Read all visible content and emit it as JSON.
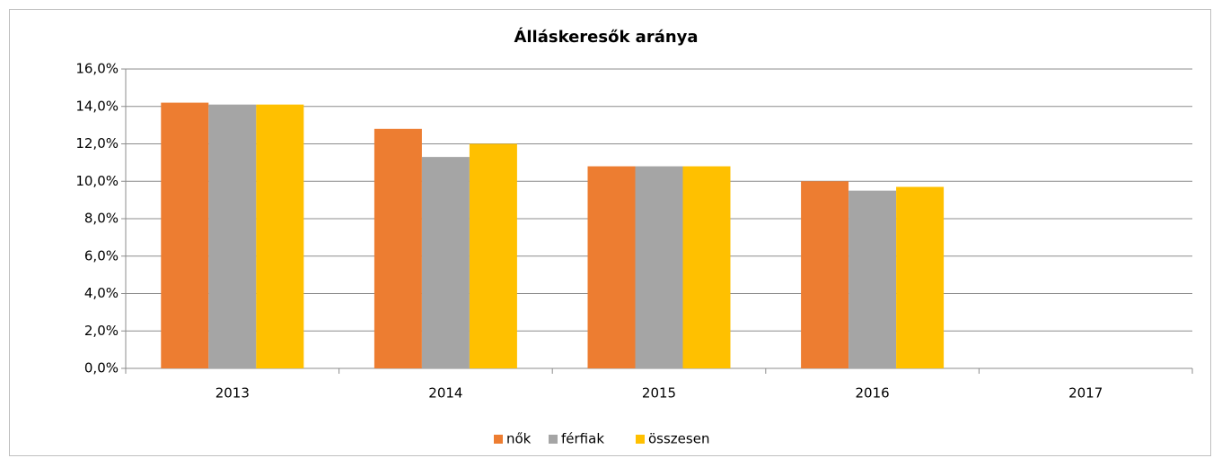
{
  "chart_data": {
    "type": "bar",
    "title": "Álláskeresők aránya",
    "categories": [
      "2013",
      "2014",
      "2015",
      "2016",
      "2017"
    ],
    "series": [
      {
        "name": "nők",
        "color": "#ed7d31",
        "values": [
          14.2,
          12.8,
          10.8,
          10.0,
          null
        ]
      },
      {
        "name": "férfiak",
        "color": "#a5a5a5",
        "values": [
          14.1,
          11.3,
          10.8,
          9.5,
          null
        ]
      },
      {
        "name": "összesen",
        "color": "#ffc000",
        "values": [
          14.1,
          12.0,
          10.8,
          9.7,
          null
        ]
      }
    ],
    "ylim": [
      0,
      16
    ],
    "yticks": [
      {
        "value": 0,
        "label": "0,0%"
      },
      {
        "value": 2,
        "label": "2,0%"
      },
      {
        "value": 4,
        "label": "4,0%"
      },
      {
        "value": 6,
        "label": "6,0%"
      },
      {
        "value": 8,
        "label": "8,0%"
      },
      {
        "value": 10,
        "label": "10,0%"
      },
      {
        "value": 12,
        "label": "12,0%"
      },
      {
        "value": 14,
        "label": "14,0%"
      },
      {
        "value": 16,
        "label": "16,0%"
      }
    ],
    "grid": true,
    "legend": "bottom"
  }
}
